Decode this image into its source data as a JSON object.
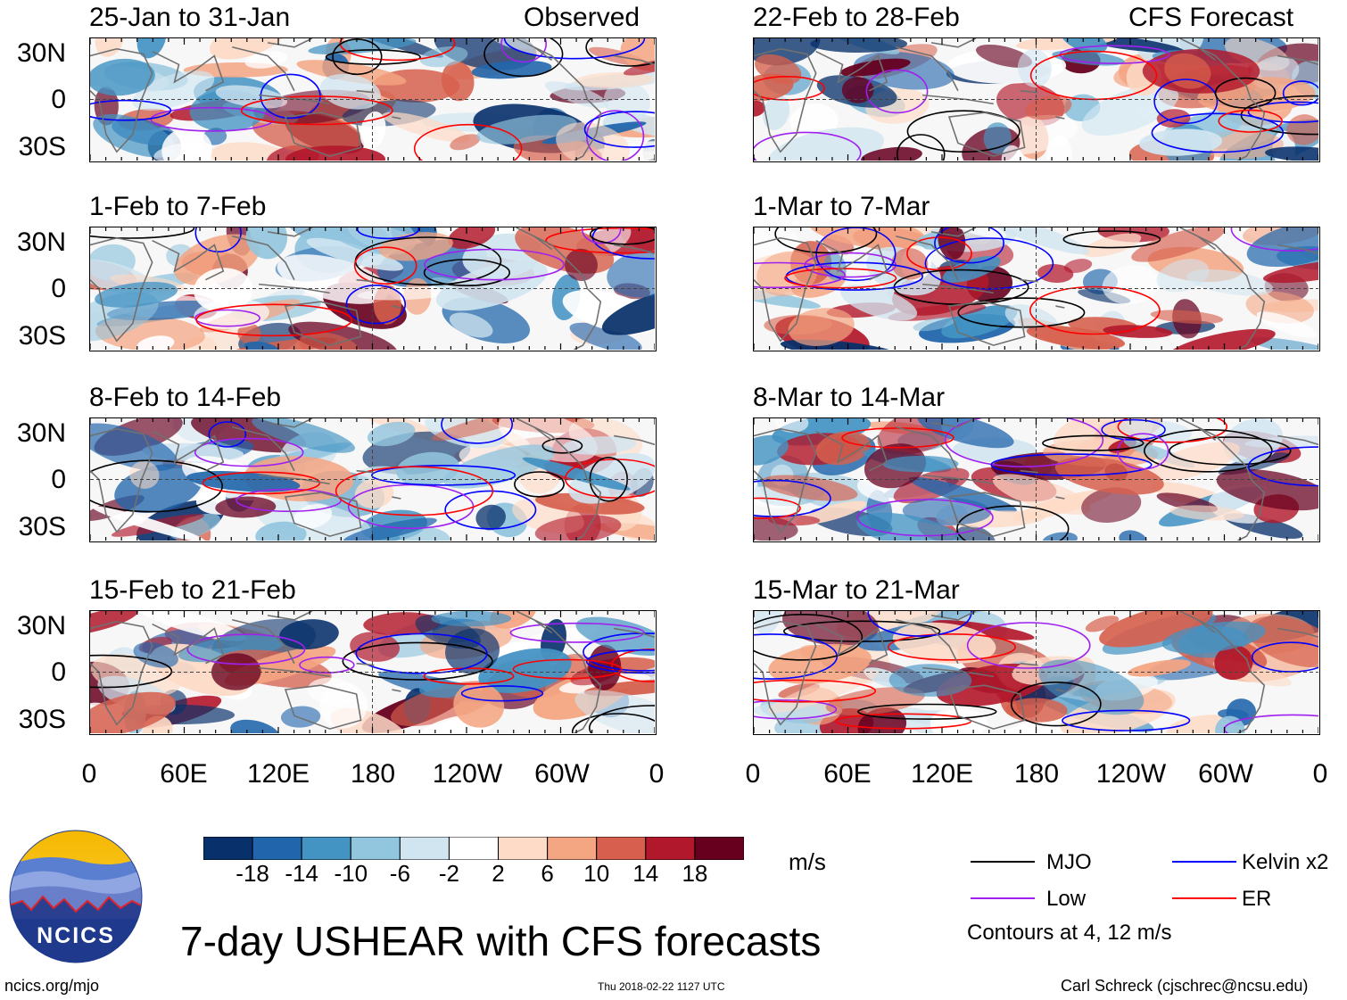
{
  "title": "7-day USHEAR with CFS forecasts",
  "observed_label": "Observed",
  "forecast_label": "CFS Forecast",
  "panels_observed": [
    {
      "period": "25-Jan to 31-Jan"
    },
    {
      "period": "1-Feb to 7-Feb"
    },
    {
      "period": "8-Feb to 14-Feb"
    },
    {
      "period": "15-Feb to 21-Feb"
    }
  ],
  "panels_forecast": [
    {
      "period": "22-Feb to 28-Feb"
    },
    {
      "period": "1-Mar to 7-Mar"
    },
    {
      "period": "8-Mar to 14-Mar"
    },
    {
      "period": "15-Mar to 21-Mar"
    }
  ],
  "lat_labels": [
    "30N",
    "0",
    "30S"
  ],
  "lon_labels": [
    "0",
    "60E",
    "120E",
    "180",
    "120W",
    "60W",
    "0"
  ],
  "colorbar": {
    "unit": "m/s",
    "ticks": [
      "-18",
      "-14",
      "-10",
      "-6",
      "-2",
      "2",
      "6",
      "10",
      "14",
      "18"
    ],
    "colors": [
      "#08306b",
      "#2166ac",
      "#4393c3",
      "#92c5de",
      "#d1e5f0",
      "#ffffff",
      "#fddbc7",
      "#f4a582",
      "#d6604d",
      "#b2182b",
      "#67001f"
    ]
  },
  "legend": {
    "items": [
      {
        "label": "MJO",
        "color": "#000000"
      },
      {
        "label": "Kelvin x2",
        "color": "#0000ff"
      },
      {
        "label": "Low",
        "color": "#a020f0"
      },
      {
        "label": "ER",
        "color": "#ff0000"
      }
    ],
    "note": "Contours at 4, 12 m/s"
  },
  "logo": {
    "text": "NCICS"
  },
  "footer": {
    "website": "ncics.org/mjo",
    "timestamp": "Thu 2018-02-22 1127 UTC",
    "author": "Carl Schreck (cjschrec@ncsu.edu)"
  }
}
